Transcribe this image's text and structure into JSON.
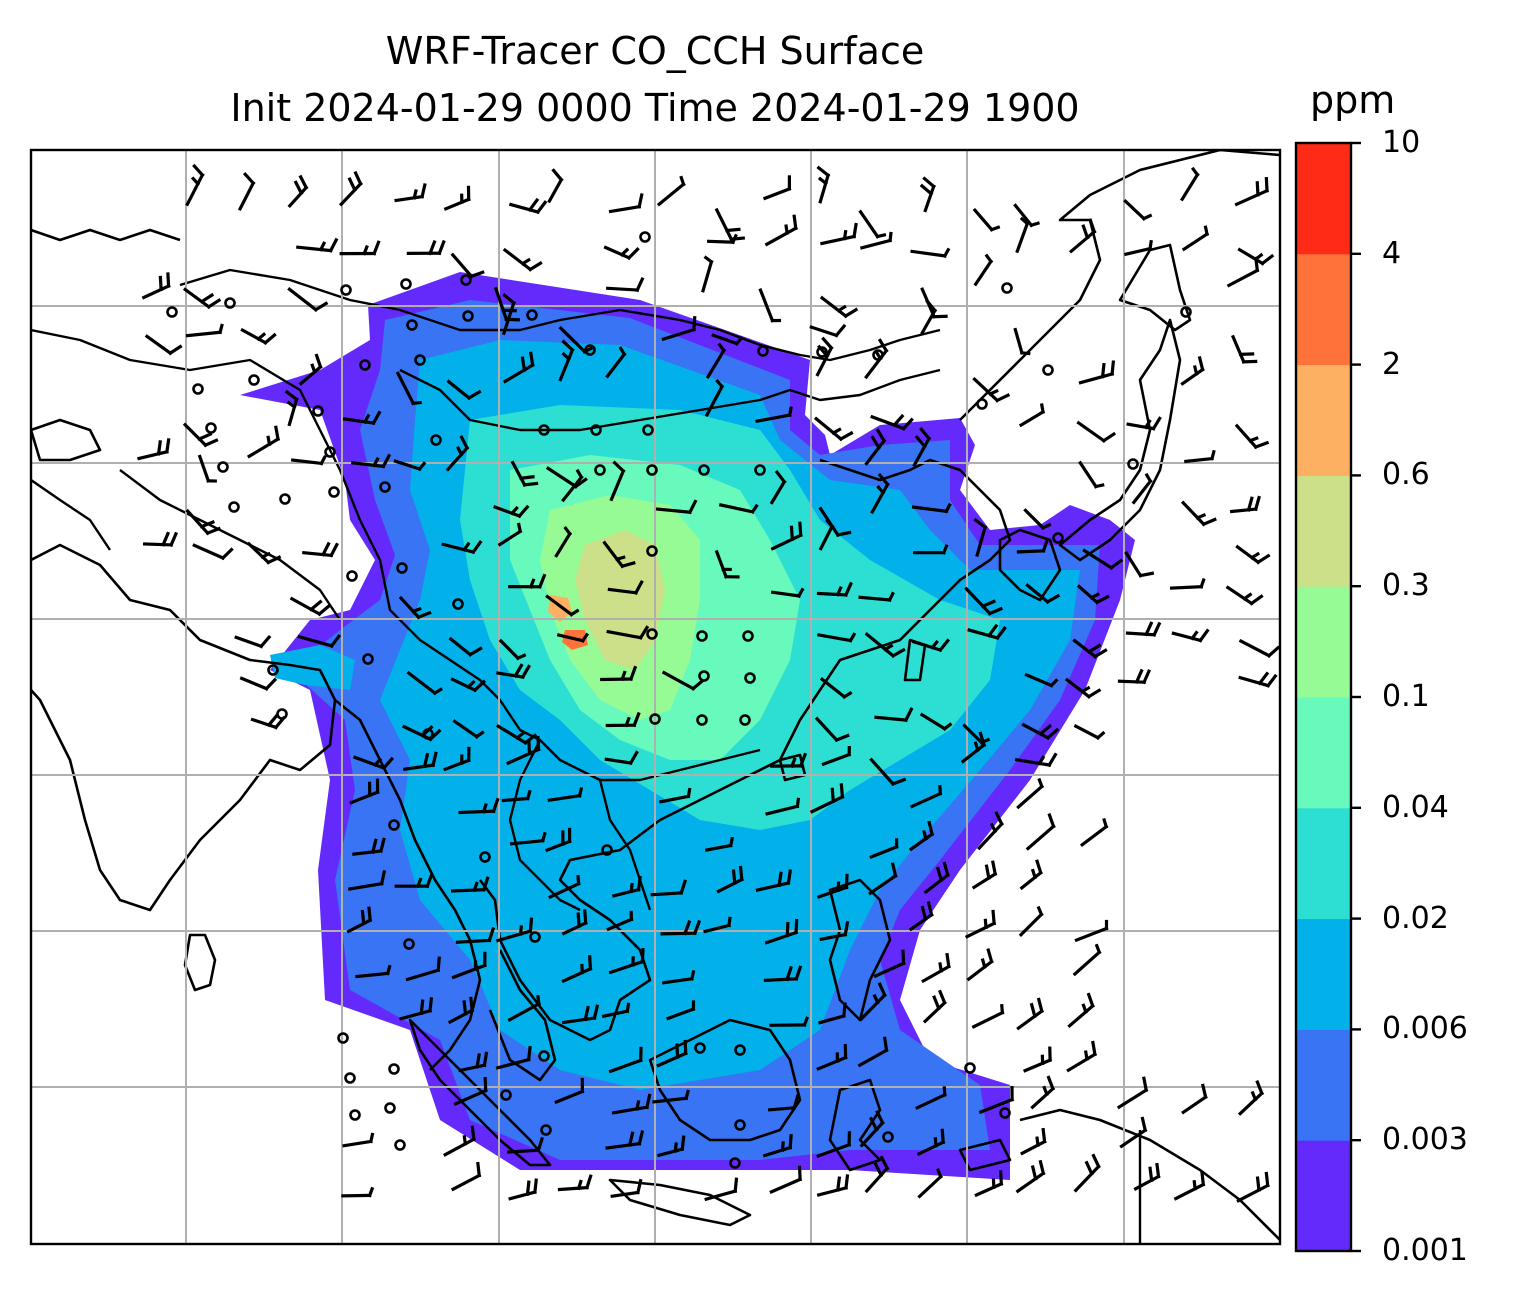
{
  "title": {
    "line1": "WRF-Tracer CO_CCH Surface",
    "line2": "Init 2024-01-29 0000 Time 2024-01-29 1900"
  },
  "colorbar": {
    "unit_label": "ppm",
    "levels": [
      "0.001",
      "0.003",
      "0.006",
      "0.02",
      "0.04",
      "0.1",
      "0.3",
      "0.6",
      "2",
      "4",
      "10"
    ],
    "colors": [
      "#6429fb",
      "#3874f4",
      "#03b1ea",
      "#2ddfd2",
      "#68f9bc",
      "#96fb94",
      "#cbe088",
      "#fdb062",
      "#ff723a",
      "#ff2b16"
    ]
  },
  "map": {
    "field": "CO_CCH surface concentration",
    "overlays": [
      "coastlines",
      "country-borders",
      "gridlines",
      "wind-barbs",
      "calm-circles"
    ]
  }
}
